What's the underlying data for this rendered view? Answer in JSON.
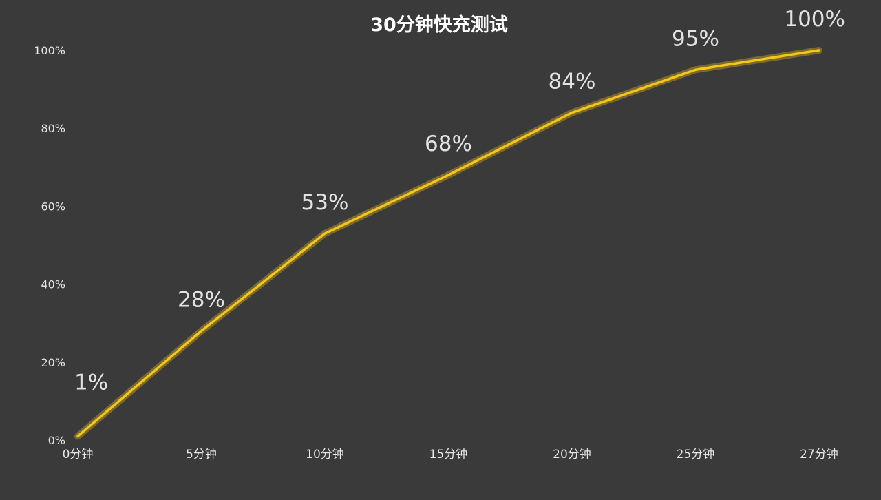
{
  "chart_data": {
    "type": "line",
    "title": "30分钟快充测试",
    "xlabel": "",
    "ylabel": "",
    "categories": [
      "0分钟",
      "5分钟",
      "10分钟",
      "15分钟",
      "20分钟",
      "25分钟",
      "27分钟"
    ],
    "series": [
      {
        "values": [
          1,
          28,
          53,
          68,
          84,
          95,
          100
        ]
      }
    ],
    "data_labels": [
      "1%",
      "28%",
      "53%",
      "68%",
      "84%",
      "95%",
      "100%"
    ],
    "y_ticks": [
      "0%",
      "20%",
      "40%",
      "60%",
      "80%",
      "100%"
    ],
    "ylim": [
      0,
      100
    ],
    "grid": false,
    "legend": "none",
    "colors": {
      "background": "#3a3a3a",
      "line": "#f5c518",
      "text": "#e6e6e6",
      "title": "#ffffff"
    }
  }
}
